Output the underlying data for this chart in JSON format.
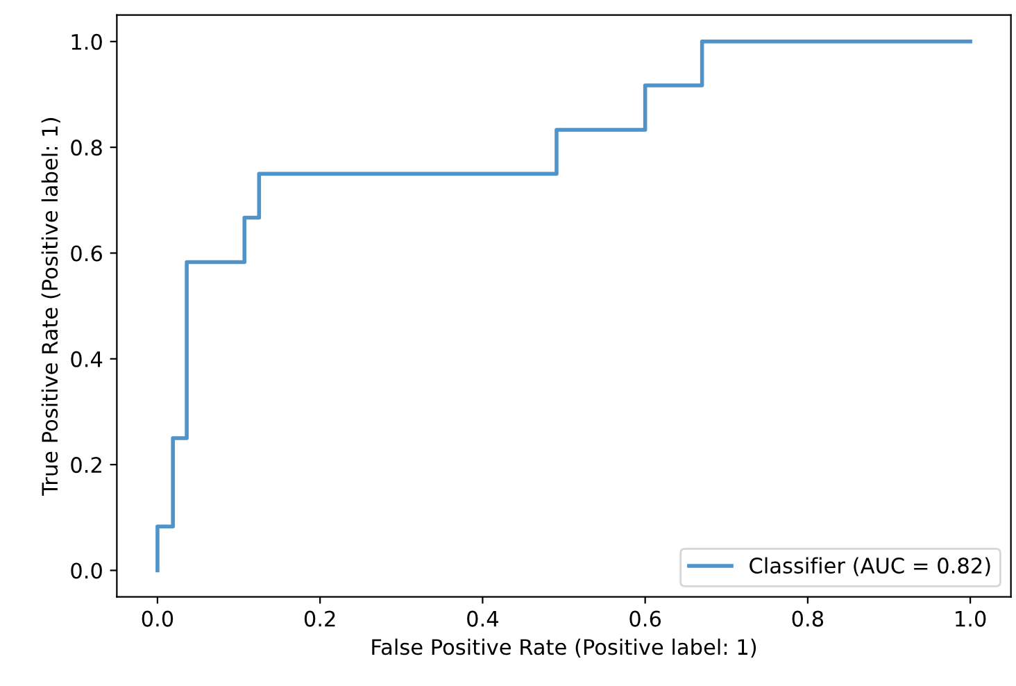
{
  "chart_data": {
    "type": "line",
    "xlabel": "False Positive Rate (Positive label: 1)",
    "ylabel": "True Positive Rate (Positive label: 1)",
    "series": [
      {
        "name": "Classifier (AUC = 0.82)",
        "color": "#4f93c9",
        "x": [
          0,
          0,
          0.019,
          0.019,
          0.036,
          0.036,
          0.107,
          0.107,
          0.125,
          0.125,
          0.491,
          0.491,
          0.6,
          0.6,
          0.67,
          0.67,
          1.0
        ],
        "values": [
          0,
          0.083,
          0.083,
          0.25,
          0.25,
          0.583,
          0.583,
          0.667,
          0.667,
          0.75,
          0.75,
          0.833,
          0.833,
          0.917,
          0.917,
          1.0,
          1.0
        ]
      }
    ],
    "xlim": [
      -0.05,
      1.05
    ],
    "ylim": [
      -0.05,
      1.05
    ],
    "xticks": [
      {
        "value": 0,
        "label": "0.0"
      },
      0.2,
      0.4,
      0.6,
      0.8,
      {
        "value": 1,
        "label": "1.0"
      }
    ],
    "yticks": [
      {
        "value": 0,
        "label": "0.0"
      },
      0.2,
      0.4,
      0.6,
      0.8,
      {
        "value": 1,
        "label": "1.0"
      }
    ],
    "legend": "lower right",
    "grid": false,
    "line_style": "solid",
    "marker": "none"
  }
}
